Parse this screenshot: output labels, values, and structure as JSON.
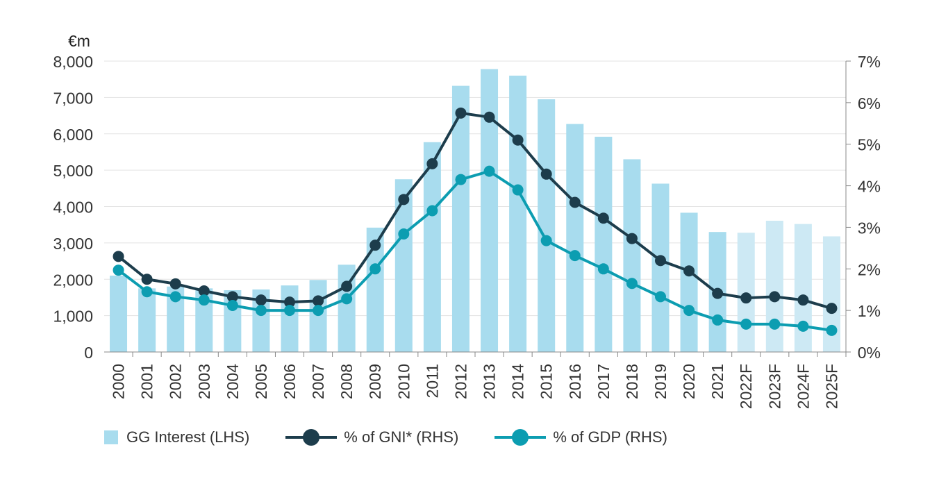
{
  "chart_data": {
    "type": "bar",
    "categories": [
      "2000",
      "2001",
      "2002",
      "2003",
      "2004",
      "2005",
      "2006",
      "2007",
      "2008",
      "2009",
      "2010",
      "2011",
      "2012",
      "2013",
      "2014",
      "2015",
      "2016",
      "2017",
      "2018",
      "2019",
      "2020",
      "2021",
      "2022F",
      "2023F",
      "2024F",
      "2025F"
    ],
    "forecast_categories": [
      "2022F",
      "2023F",
      "2024F",
      "2025F"
    ],
    "left_axis": {
      "unit_label": "€m",
      "ylim": [
        0,
        8000
      ],
      "ticks": [
        0,
        1000,
        2000,
        3000,
        4000,
        5000,
        6000,
        7000,
        8000
      ],
      "tick_labels": [
        "0",
        "1,000",
        "2,000",
        "3,000",
        "4,000",
        "5,000",
        "6,000",
        "7,000",
        "8,000"
      ]
    },
    "right_axis": {
      "ylim": [
        0,
        7
      ],
      "ticks": [
        0,
        1,
        2,
        3,
        4,
        5,
        6,
        7
      ],
      "tick_labels": [
        "0%",
        "1%",
        "2%",
        "3%",
        "4%",
        "5%",
        "6%",
        "7%"
      ]
    },
    "grid": true,
    "legend_position": "bottom",
    "series": [
      {
        "name": "GG Interest (LHS)",
        "type": "bar",
        "axis": "left",
        "color": "#a8dcee",
        "forecast_color": "#cde9f4",
        "values": [
          2100,
          1750,
          1800,
          1750,
          1700,
          1720,
          1830,
          1980,
          2400,
          3420,
          4750,
          5770,
          7320,
          7780,
          7600,
          6950,
          6270,
          5920,
          5300,
          4630,
          3830,
          3300,
          3280,
          3610,
          3520,
          3180
        ]
      },
      {
        "name": "% of GNI* (RHS)",
        "type": "line",
        "axis": "right",
        "color": "#1d3d4c",
        "values": [
          2.3,
          1.75,
          1.64,
          1.47,
          1.33,
          1.25,
          1.2,
          1.23,
          1.58,
          2.57,
          3.67,
          4.53,
          5.75,
          5.65,
          5.1,
          4.28,
          3.6,
          3.22,
          2.73,
          2.2,
          1.95,
          1.41,
          1.3,
          1.33,
          1.25,
          1.05
        ]
      },
      {
        "name": "% of GDP (RHS)",
        "type": "line",
        "axis": "right",
        "color": "#0c9db1",
        "values": [
          1.97,
          1.45,
          1.33,
          1.25,
          1.12,
          1.0,
          1.0,
          1.0,
          1.28,
          2.0,
          2.84,
          3.4,
          4.15,
          4.35,
          3.9,
          2.68,
          2.32,
          2.0,
          1.65,
          1.33,
          1.0,
          0.77,
          0.67,
          0.67,
          0.62,
          0.52
        ]
      }
    ]
  }
}
